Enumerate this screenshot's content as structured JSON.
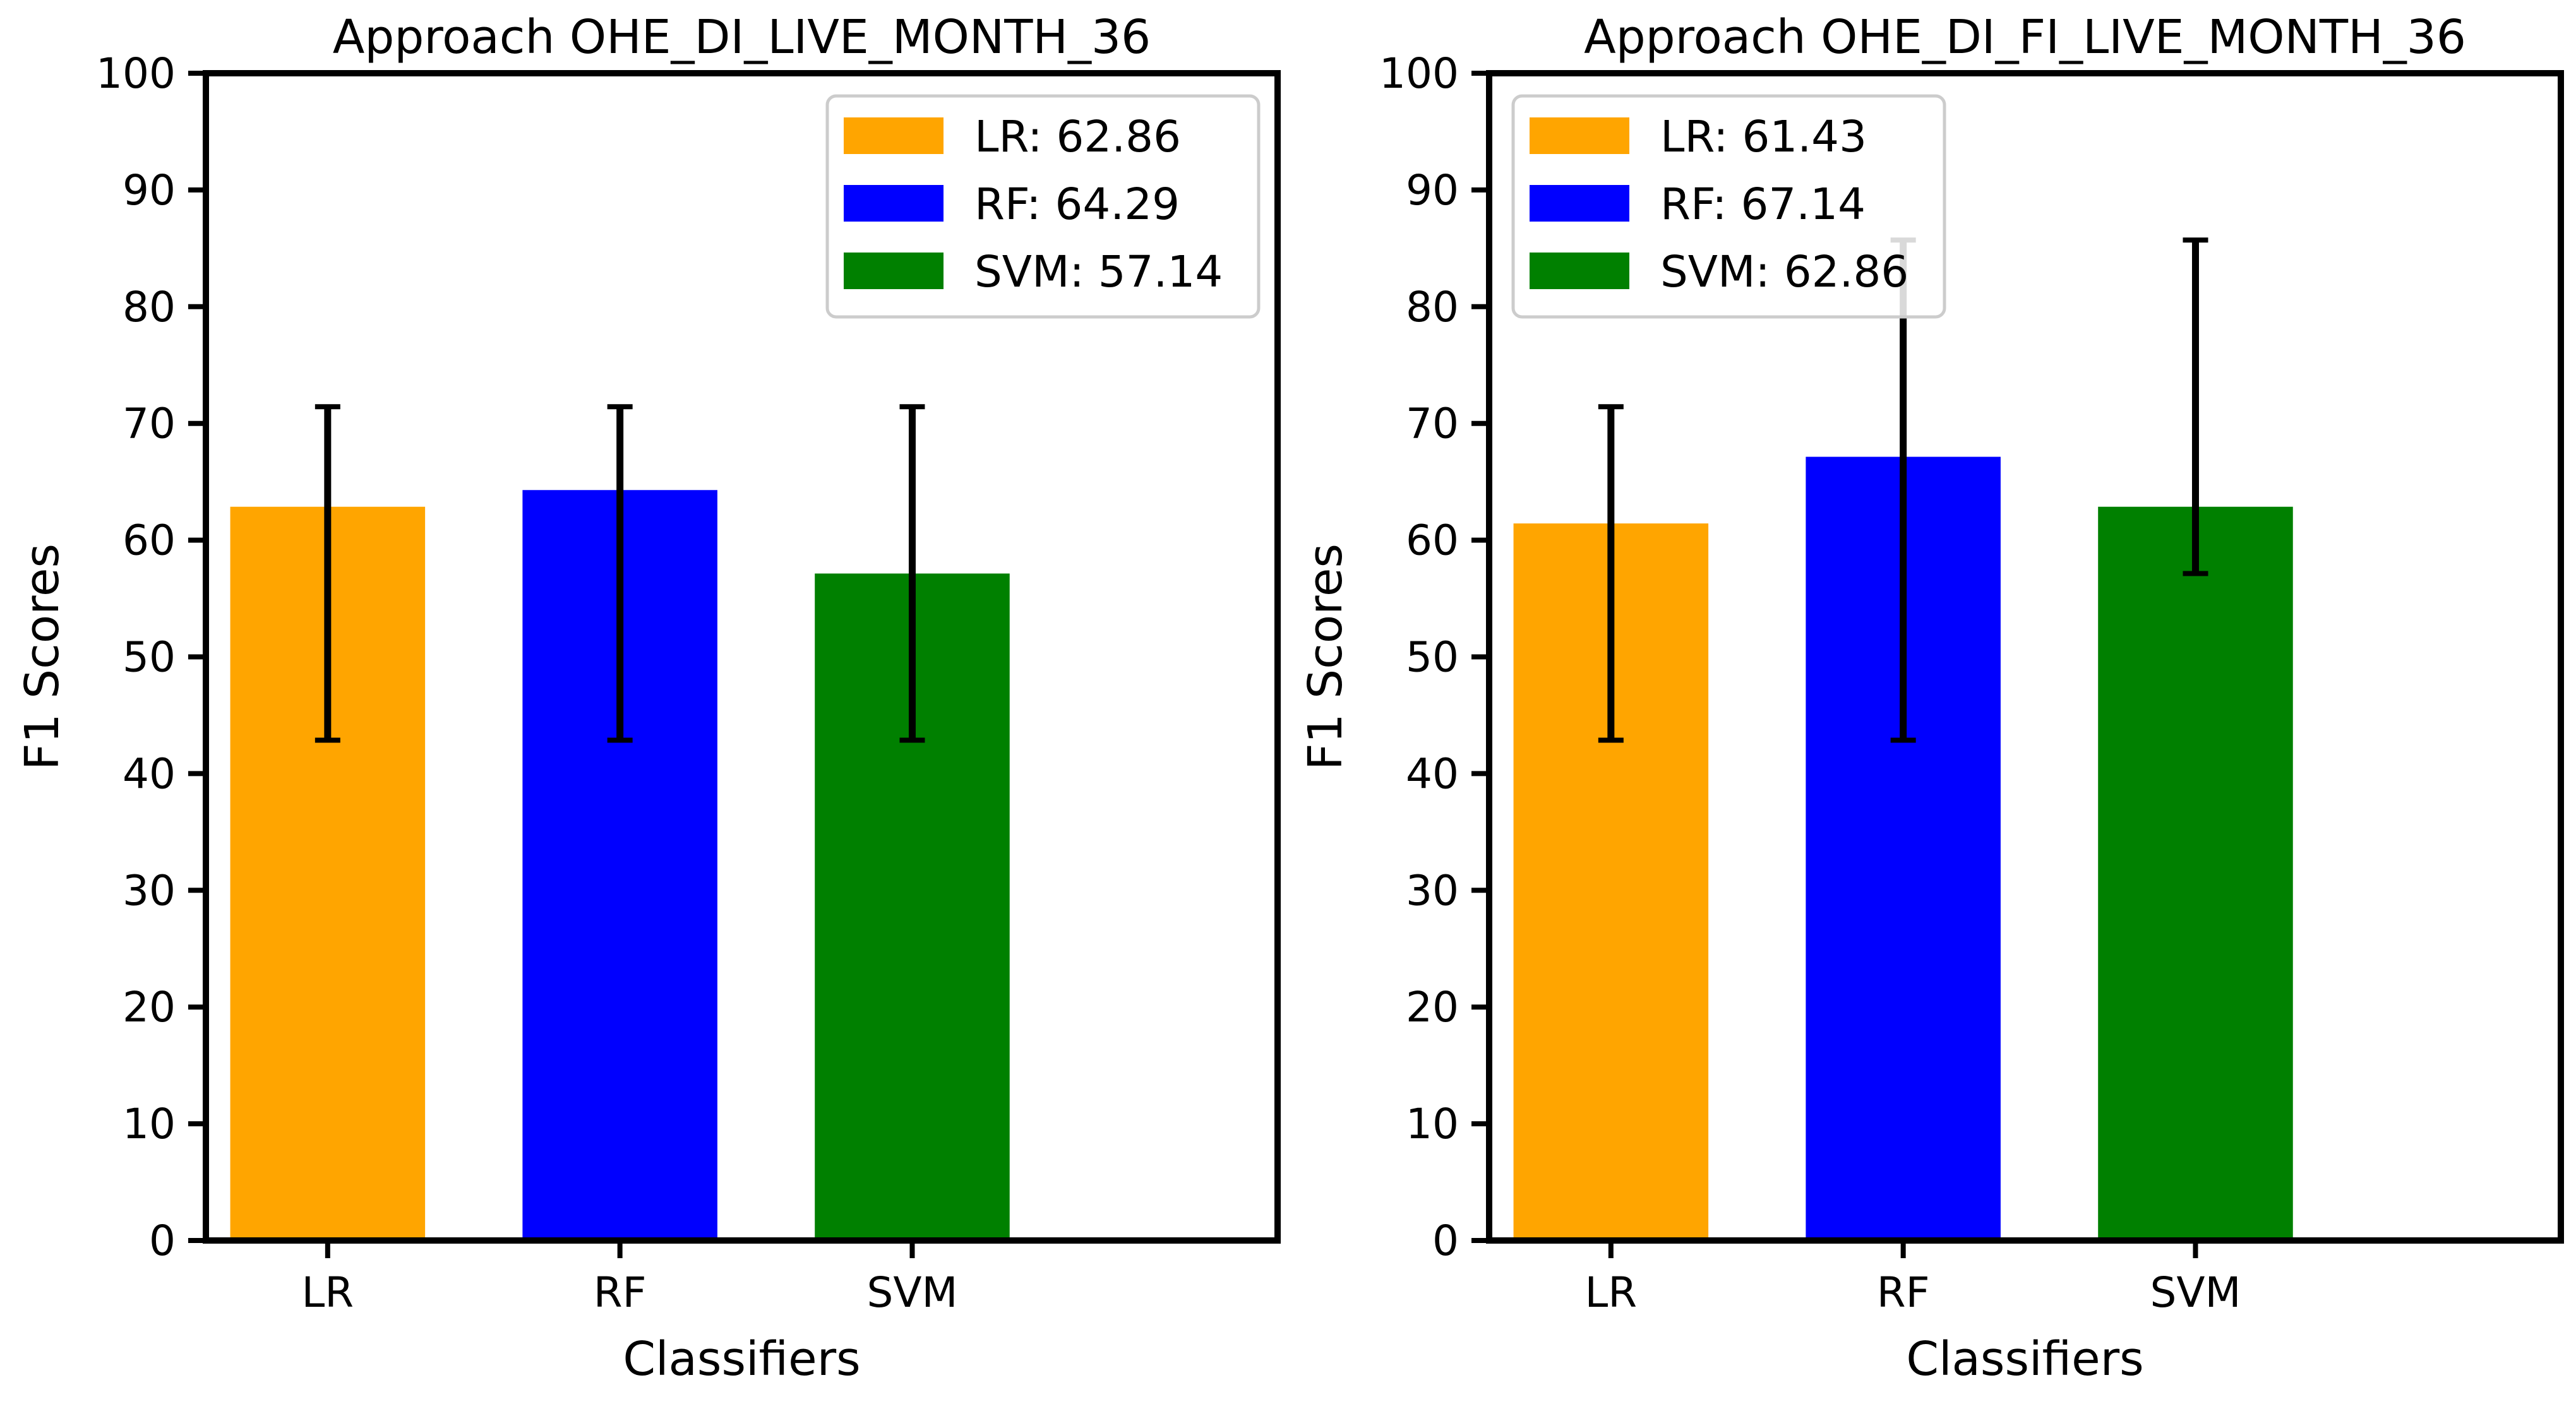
{
  "chart_data": [
    {
      "type": "bar",
      "title": "Approach OHE_DI_LIVE_MONTH_36",
      "xlabel": "Classifiers",
      "ylabel": "F1 Scores",
      "categories": [
        "LR",
        "RF",
        "SVM"
      ],
      "values": [
        62.86,
        64.29,
        57.14
      ],
      "error_bars": [
        {
          "low": 42.86,
          "high": 71.43
        },
        {
          "low": 42.86,
          "high": 71.43
        },
        {
          "low": 42.86,
          "high": 71.43
        }
      ],
      "colors": [
        "#ffa500",
        "#0000ff",
        "#008000"
      ],
      "ylim": [
        0,
        100
      ],
      "yticks": [
        "0",
        "10",
        "20",
        "30",
        "40",
        "50",
        "60",
        "70",
        "80",
        "90",
        "100"
      ],
      "grid": false,
      "legend_position": "top-right",
      "legend": [
        "LR: 62.86",
        "RF: 64.29",
        "SVM: 57.14"
      ]
    },
    {
      "type": "bar",
      "title": "Approach OHE_DI_FI_LIVE_MONTH_36",
      "xlabel": "Classifiers",
      "ylabel": "F1 Scores",
      "categories": [
        "LR",
        "RF",
        "SVM"
      ],
      "values": [
        61.43,
        67.14,
        62.86
      ],
      "error_bars": [
        {
          "low": 42.86,
          "high": 71.43
        },
        {
          "low": 42.86,
          "high": 85.71
        },
        {
          "low": 57.14,
          "high": 85.71
        }
      ],
      "colors": [
        "#ffa500",
        "#0000ff",
        "#008000"
      ],
      "ylim": [
        0,
        100
      ],
      "yticks": [
        "0",
        "10",
        "20",
        "30",
        "40",
        "50",
        "60",
        "70",
        "80",
        "90",
        "100"
      ],
      "grid": false,
      "legend_position": "top-left",
      "legend": [
        "LR: 61.43",
        "RF: 67.14",
        "SVM: 62.86"
      ]
    }
  ]
}
